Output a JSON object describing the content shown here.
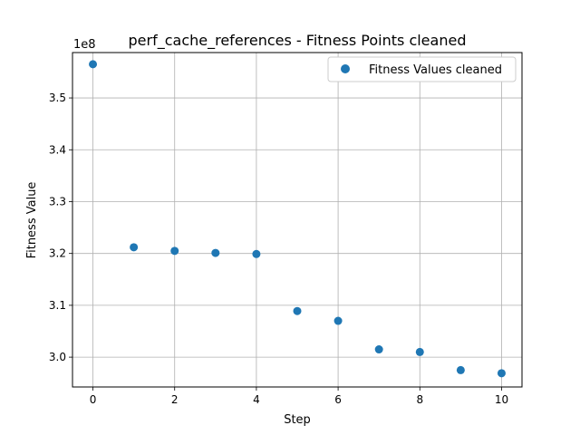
{
  "chart_data": {
    "type": "scatter",
    "title": "perf_cache_references - Fitness Points cleaned",
    "xlabel": "Step",
    "ylabel": "Fitness Value",
    "y_offset_label": "1e8",
    "y_scale": 100000000,
    "xlim": [
      -0.5,
      10.5
    ],
    "ylim": [
      2.9425,
      3.5875
    ],
    "x_ticks": [
      0,
      2,
      4,
      6,
      8,
      10
    ],
    "x_tick_labels": [
      "0",
      "2",
      "4",
      "6",
      "8",
      "10"
    ],
    "y_ticks": [
      3.0,
      3.1,
      3.2,
      3.3,
      3.4,
      3.5
    ],
    "y_tick_labels": [
      "3.0",
      "3.1",
      "3.2",
      "3.3",
      "3.4",
      "3.5"
    ],
    "grid": true,
    "legend_position": "top-right",
    "series": [
      {
        "name": "Fitness Values cleaned",
        "color": "#1f77b4",
        "x": [
          0,
          1,
          2,
          3,
          4,
          5,
          6,
          7,
          8,
          9,
          10
        ],
        "y": [
          356500000,
          321200000,
          320500000,
          320100000,
          319900000,
          308900000,
          307000000,
          301500000,
          301000000,
          297500000,
          296900000
        ]
      }
    ]
  }
}
